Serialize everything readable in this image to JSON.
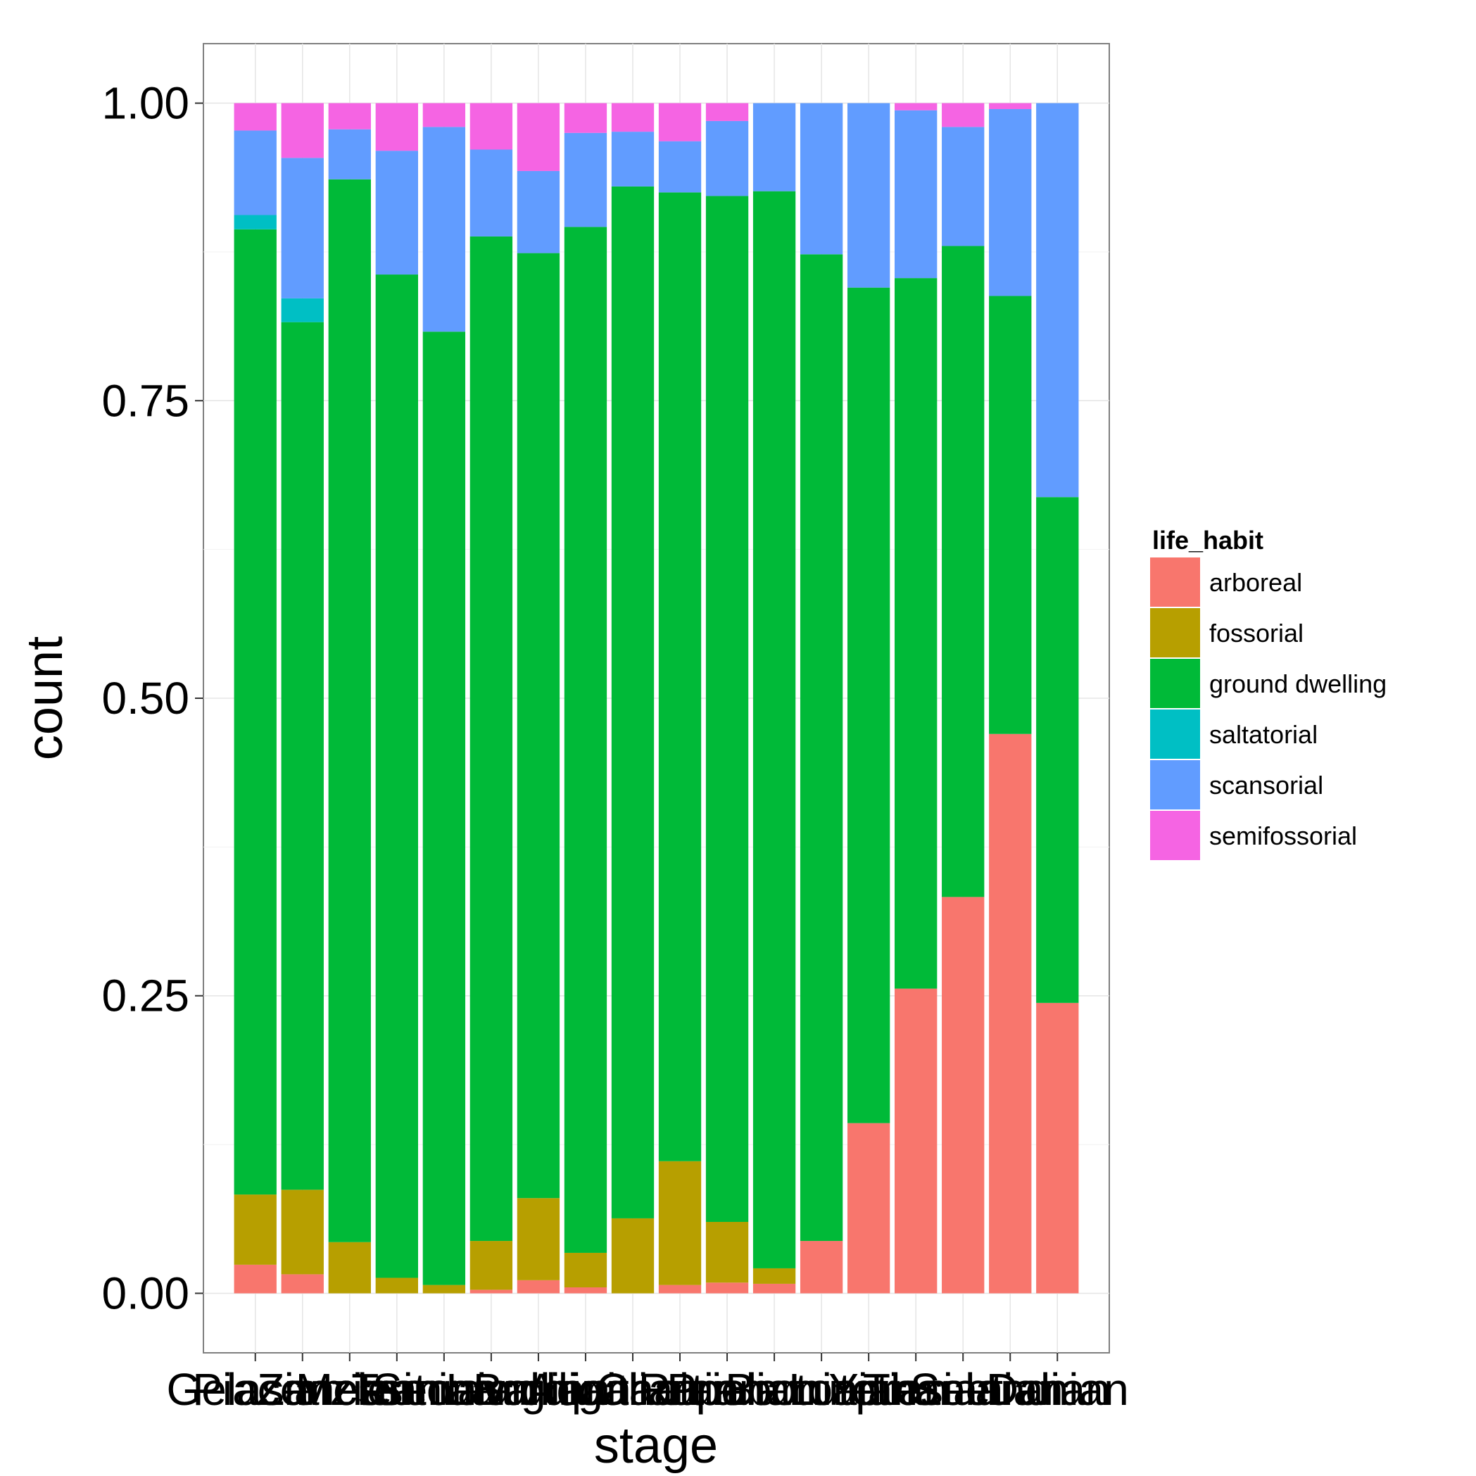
{
  "chart_data": {
    "type": "bar",
    "stacked": true,
    "xlabel": "stage",
    "ylabel": "count",
    "ylim": [
      -0.05,
      1.05
    ],
    "yticks": [
      "0.00",
      "0.25",
      "0.50",
      "0.75",
      "1.00"
    ],
    "ytick_values": [
      0,
      0.25,
      0.5,
      0.75,
      1.0
    ],
    "grid": true,
    "legend_position": "right",
    "legend_title": "life_habit",
    "categories": [
      "Gelasian",
      "Piacenzian",
      "Zanclean",
      "Messinian",
      "Tortonian",
      "Serravallian",
      "Langhian",
      "Burdigalian",
      "Aquitanian",
      "Chattian",
      "Rupelian",
      "Priabonian",
      "Bartonian",
      "Lutetian",
      "Ypresian",
      "Thanetian",
      "Selandian",
      "Danian"
    ],
    "series": [
      {
        "name": "arboreal",
        "color": "#F8766D",
        "values": [
          0.024,
          0.016,
          0,
          0,
          0,
          0.003,
          0.011,
          0.005,
          0,
          0.007,
          0.009,
          0.008,
          0.044,
          0.143,
          0.256,
          0.333,
          0.47,
          0.244
        ]
      },
      {
        "name": "fossorial",
        "color": "#B79F00",
        "values": [
          0.059,
          0.071,
          0.043,
          0.013,
          0.007,
          0.041,
          0.069,
          0.029,
          0.063,
          0.104,
          0.051,
          0.013,
          0,
          0,
          0,
          0,
          0,
          0
        ]
      },
      {
        "name": "ground dwelling",
        "color": "#00BA38",
        "values": [
          0.811,
          0.729,
          0.893,
          0.843,
          0.801,
          0.844,
          0.794,
          0.862,
          0.867,
          0.814,
          0.862,
          0.905,
          0.829,
          0.702,
          0.597,
          0.547,
          0.368,
          0.425
        ]
      },
      {
        "name": "saltatorial",
        "color": "#00BFC4",
        "values": [
          0.012,
          0.02,
          0,
          0,
          0,
          0,
          0,
          0,
          0,
          0,
          0,
          0,
          0,
          0,
          0,
          0,
          0,
          0
        ]
      },
      {
        "name": "scansorial",
        "color": "#619CFF",
        "values": [
          0.071,
          0.118,
          0.042,
          0.104,
          0.172,
          0.073,
          0.069,
          0.079,
          0.046,
          0.043,
          0.063,
          0.074,
          0.127,
          0.155,
          0.141,
          0.1,
          0.157,
          0.331
        ]
      },
      {
        "name": "semifossorial",
        "color": "#F564E3",
        "values": [
          0.023,
          0.046,
          0.022,
          0.04,
          0.02,
          0.039,
          0.057,
          0.025,
          0.024,
          0.032,
          0.015,
          0,
          0,
          0,
          0.006,
          0.02,
          0.005,
          0
        ]
      }
    ]
  }
}
